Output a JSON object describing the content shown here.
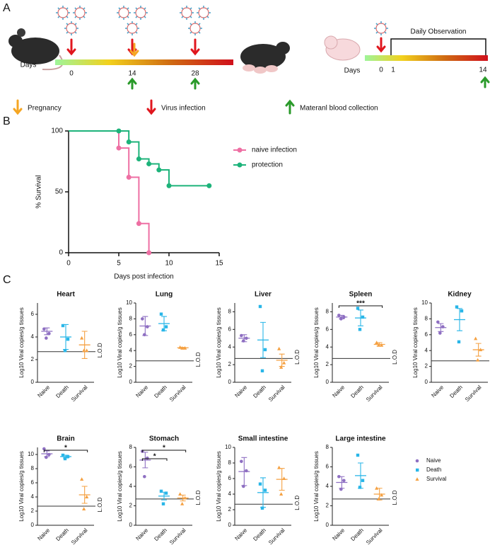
{
  "panel_a": {
    "label": "A",
    "timeline_1": {
      "axis_label": "Days",
      "days": [
        "0",
        "14",
        "28"
      ]
    },
    "timeline_2": {
      "axis_label": "Days",
      "days": [
        "0",
        "1",
        "14"
      ],
      "bracket_label": "Daily Observation"
    },
    "legend": [
      "Pregnancy",
      "Virus infection",
      "Materanl blood collection"
    ]
  },
  "chart_data": [
    {
      "type": "survival",
      "panel": "B",
      "ylabel": "% Survival",
      "xlabel": "Days post infection",
      "xlim": [
        0,
        15
      ],
      "xticks": [
        0,
        5,
        10,
        15
      ],
      "ylim": [
        0,
        100
      ],
      "yticks": [
        0,
        50,
        100
      ],
      "series": [
        {
          "name": "naive infection",
          "color": "#ee6fa3",
          "x": [
            0,
            5,
            6,
            7,
            8
          ],
          "values": [
            100,
            86,
            62,
            24,
            0
          ]
        },
        {
          "name": "protection",
          "color": "#1db37a",
          "x": [
            0,
            5,
            6,
            7,
            8,
            9,
            10,
            14
          ],
          "values": [
            100,
            100,
            91,
            77,
            73,
            68,
            55,
            55
          ]
        }
      ]
    },
    {
      "type": "dot",
      "panel": "C",
      "title": "Heart",
      "ylabel": "Log10 Viral copies/g tissues",
      "ylim": [
        0,
        7
      ],
      "yticks": [
        0,
        2,
        4,
        6
      ],
      "reference_line": {
        "value": 2.7,
        "label": "L.O.D"
      },
      "series": [
        {
          "name": "Naive",
          "color": "#8e6fc2",
          "marker": "circle",
          "values": [
            4.7,
            4.3,
            3.9
          ],
          "mean": 4.5,
          "sem": 0.3
        },
        {
          "name": "Death",
          "color": "#29b6e8",
          "marker": "square",
          "values": [
            5.0,
            3.8,
            2.8
          ],
          "mean": 4.0,
          "sem": 1.1
        },
        {
          "name": "Survival",
          "color": "#f5a142",
          "marker": "triangle",
          "values": [
            3.9,
            2.8,
            2.8
          ],
          "mean": 3.3,
          "sem": 1.2
        }
      ]
    },
    {
      "type": "dot",
      "title": "Lung",
      "ylabel": "Log10 Viral copies/g tissues",
      "ylim": [
        0,
        10
      ],
      "yticks": [
        0,
        2,
        4,
        6,
        8,
        10
      ],
      "reference_line": {
        "value": 2.7,
        "label": "L.O.D"
      },
      "series": [
        {
          "name": "Naive",
          "color": "#8e6fc2",
          "marker": "circle",
          "values": [
            8.0,
            7.0,
            6.0
          ],
          "mean": 7.1,
          "sem": 1.2
        },
        {
          "name": "Death",
          "color": "#29b6e8",
          "marker": "square",
          "values": [
            8.6,
            7.0,
            6.6
          ],
          "mean": 7.4,
          "sem": 0.9
        },
        {
          "name": "Survival",
          "color": "#f5a142",
          "marker": "triangle",
          "values": [
            4.4,
            4.3,
            4.3
          ],
          "mean": 4.35,
          "sem": 0.05
        }
      ]
    },
    {
      "type": "dot",
      "title": "Liver",
      "ylabel": "Log10 Viral copies/g tissues",
      "ylim": [
        0,
        9
      ],
      "yticks": [
        0,
        2,
        4,
        6,
        8
      ],
      "reference_line": {
        "value": 2.7,
        "label": "L.O.D"
      },
      "series": [
        {
          "name": "Naive",
          "color": "#8e6fc2",
          "marker": "circle",
          "values": [
            5.3,
            5.0,
            4.7
          ],
          "mean": 5.0,
          "sem": 0.4
        },
        {
          "name": "Death",
          "color": "#29b6e8",
          "marker": "square",
          "values": [
            8.6,
            3.7,
            1.3
          ],
          "mean": 4.8,
          "sem": 2.0
        },
        {
          "name": "Survival",
          "color": "#f5a142",
          "marker": "triangle",
          "values": [
            3.8,
            2.2,
            1.7
          ],
          "mean": 2.5,
          "sem": 0.7
        }
      ]
    },
    {
      "type": "dot",
      "title": "Spleen",
      "ylabel": "Log10 Viral copies/g tissues",
      "ylim": [
        0,
        9
      ],
      "yticks": [
        0,
        2,
        4,
        6,
        8
      ],
      "reference_line": {
        "value": 2.7,
        "label": "L.O.D"
      },
      "significance": [
        {
          "from": 0,
          "to": 2,
          "label": "***"
        }
      ],
      "series": [
        {
          "name": "Naive",
          "color": "#8e6fc2",
          "marker": "circle",
          "values": [
            7.6,
            7.4,
            7.2
          ],
          "mean": 7.4,
          "sem": 0.2
        },
        {
          "name": "Death",
          "color": "#29b6e8",
          "marker": "square",
          "values": [
            8.4,
            7.4,
            6.0
          ],
          "mean": 7.3,
          "sem": 0.9
        },
        {
          "name": "Survival",
          "color": "#f5a142",
          "marker": "triangle",
          "values": [
            4.5,
            4.2,
            4.2
          ],
          "mean": 4.3,
          "sem": 0.2
        }
      ]
    },
    {
      "type": "dot",
      "title": "Kidney",
      "ylabel": "Log10 Viral copies/g tissues",
      "ylim": [
        0,
        10
      ],
      "yticks": [
        0,
        2,
        4,
        6,
        8,
        10
      ],
      "reference_line": {
        "value": 2.7,
        "label": "L.O.D"
      },
      "series": [
        {
          "name": "Naive",
          "color": "#8e6fc2",
          "marker": "circle",
          "values": [
            7.6,
            7.0,
            6.2
          ],
          "mean": 6.9,
          "sem": 0.5
        },
        {
          "name": "Death",
          "color": "#29b6e8",
          "marker": "square",
          "values": [
            9.5,
            9.0,
            5.1
          ],
          "mean": 7.9,
          "sem": 1.4
        },
        {
          "name": "Survival",
          "color": "#f5a142",
          "marker": "triangle",
          "values": [
            5.5,
            4.1,
            2.8
          ],
          "mean": 4.1,
          "sem": 0.8
        }
      ]
    },
    {
      "type": "dot",
      "title": "Brain",
      "ylabel": "Log10 Viral copies/g tissues",
      "ylim": [
        0,
        11
      ],
      "yticks": [
        0,
        2,
        4,
        6,
        8,
        10
      ],
      "reference_line": {
        "value": 2.7,
        "label": "L.O.D"
      },
      "significance": [
        {
          "from": 0,
          "to": 2,
          "label": "*"
        }
      ],
      "series": [
        {
          "name": "Naive",
          "color": "#8e6fc2",
          "marker": "circle",
          "values": [
            10.8,
            10.0,
            9.6
          ],
          "mean": 10.1,
          "sem": 0.4
        },
        {
          "name": "Death",
          "color": "#29b6e8",
          "marker": "square",
          "values": [
            9.9,
            9.7,
            9.4
          ],
          "mean": 9.7,
          "sem": 0.2
        },
        {
          "name": "Survival",
          "color": "#f5a142",
          "marker": "triangle",
          "values": [
            6.5,
            4.0,
            2.3
          ],
          "mean": 4.3,
          "sem": 1.2
        }
      ]
    },
    {
      "type": "dot",
      "title": "Stomach",
      "ylabel": "Log10 Viral copies/g tissues",
      "ylim": [
        0,
        8
      ],
      "yticks": [
        0,
        2,
        4,
        6,
        8
      ],
      "reference_line": {
        "value": 2.7,
        "label": "L.O.D"
      },
      "significance": [
        {
          "from": 0,
          "to": 2,
          "label": "*"
        },
        {
          "from": 0,
          "to": 1,
          "label": "*"
        }
      ],
      "series": [
        {
          "name": "Naive",
          "color": "#8e6fc2",
          "marker": "circle",
          "values": [
            7.6,
            6.9,
            5.0
          ],
          "mean": 6.7,
          "sem": 0.8
        },
        {
          "name": "Death",
          "color": "#29b6e8",
          "marker": "square",
          "values": [
            3.5,
            3.3,
            2.2
          ],
          "mean": 3.0,
          "sem": 0.4
        },
        {
          "name": "Survival",
          "color": "#f5a142",
          "marker": "triangle",
          "values": [
            3.2,
            2.8,
            2.2
          ],
          "mean": 2.8,
          "sem": 0.3
        }
      ]
    },
    {
      "type": "dot",
      "title": "Small intestine",
      "ylabel": "Log10 Viral copies/g tissues",
      "ylim": [
        0,
        10
      ],
      "yticks": [
        0,
        2,
        4,
        6,
        8,
        10
      ],
      "reference_line": {
        "value": 2.7,
        "label": "L.O.D"
      },
      "series": [
        {
          "name": "Naive",
          "color": "#8e6fc2",
          "marker": "circle",
          "values": [
            8.2,
            7.0,
            5.0
          ],
          "mean": 6.9,
          "sem": 1.8
        },
        {
          "name": "Death",
          "color": "#29b6e8",
          "marker": "square",
          "values": [
            5.3,
            4.5,
            2.2
          ],
          "mean": 4.2,
          "sem": 1.9
        },
        {
          "name": "Survival",
          "color": "#f5a142",
          "marker": "triangle",
          "values": [
            7.4,
            6.0,
            4.0
          ],
          "mean": 5.9,
          "sem": 1.4
        }
      ]
    },
    {
      "type": "dot",
      "title": "Large intestine",
      "ylabel": "Log10 Viral copies/g tissues",
      "ylim": [
        0,
        8
      ],
      "yticks": [
        0,
        2,
        4,
        6,
        8
      ],
      "reference_line": {
        "value": 2.7,
        "label": "L.O.D"
      },
      "legend": true,
      "series": [
        {
          "name": "Naive",
          "color": "#8e6fc2",
          "marker": "circle",
          "values": [
            5.0,
            4.6,
            3.7
          ],
          "mean": 4.4,
          "sem": 0.6
        },
        {
          "name": "Death",
          "color": "#29b6e8",
          "marker": "square",
          "values": [
            7.2,
            4.6,
            3.9
          ],
          "mean": 5.1,
          "sem": 1.3
        },
        {
          "name": "Survival",
          "color": "#f5a142",
          "marker": "triangle",
          "values": [
            3.8,
            3.1,
            2.7
          ],
          "mean": 3.2,
          "sem": 0.6
        }
      ]
    }
  ]
}
